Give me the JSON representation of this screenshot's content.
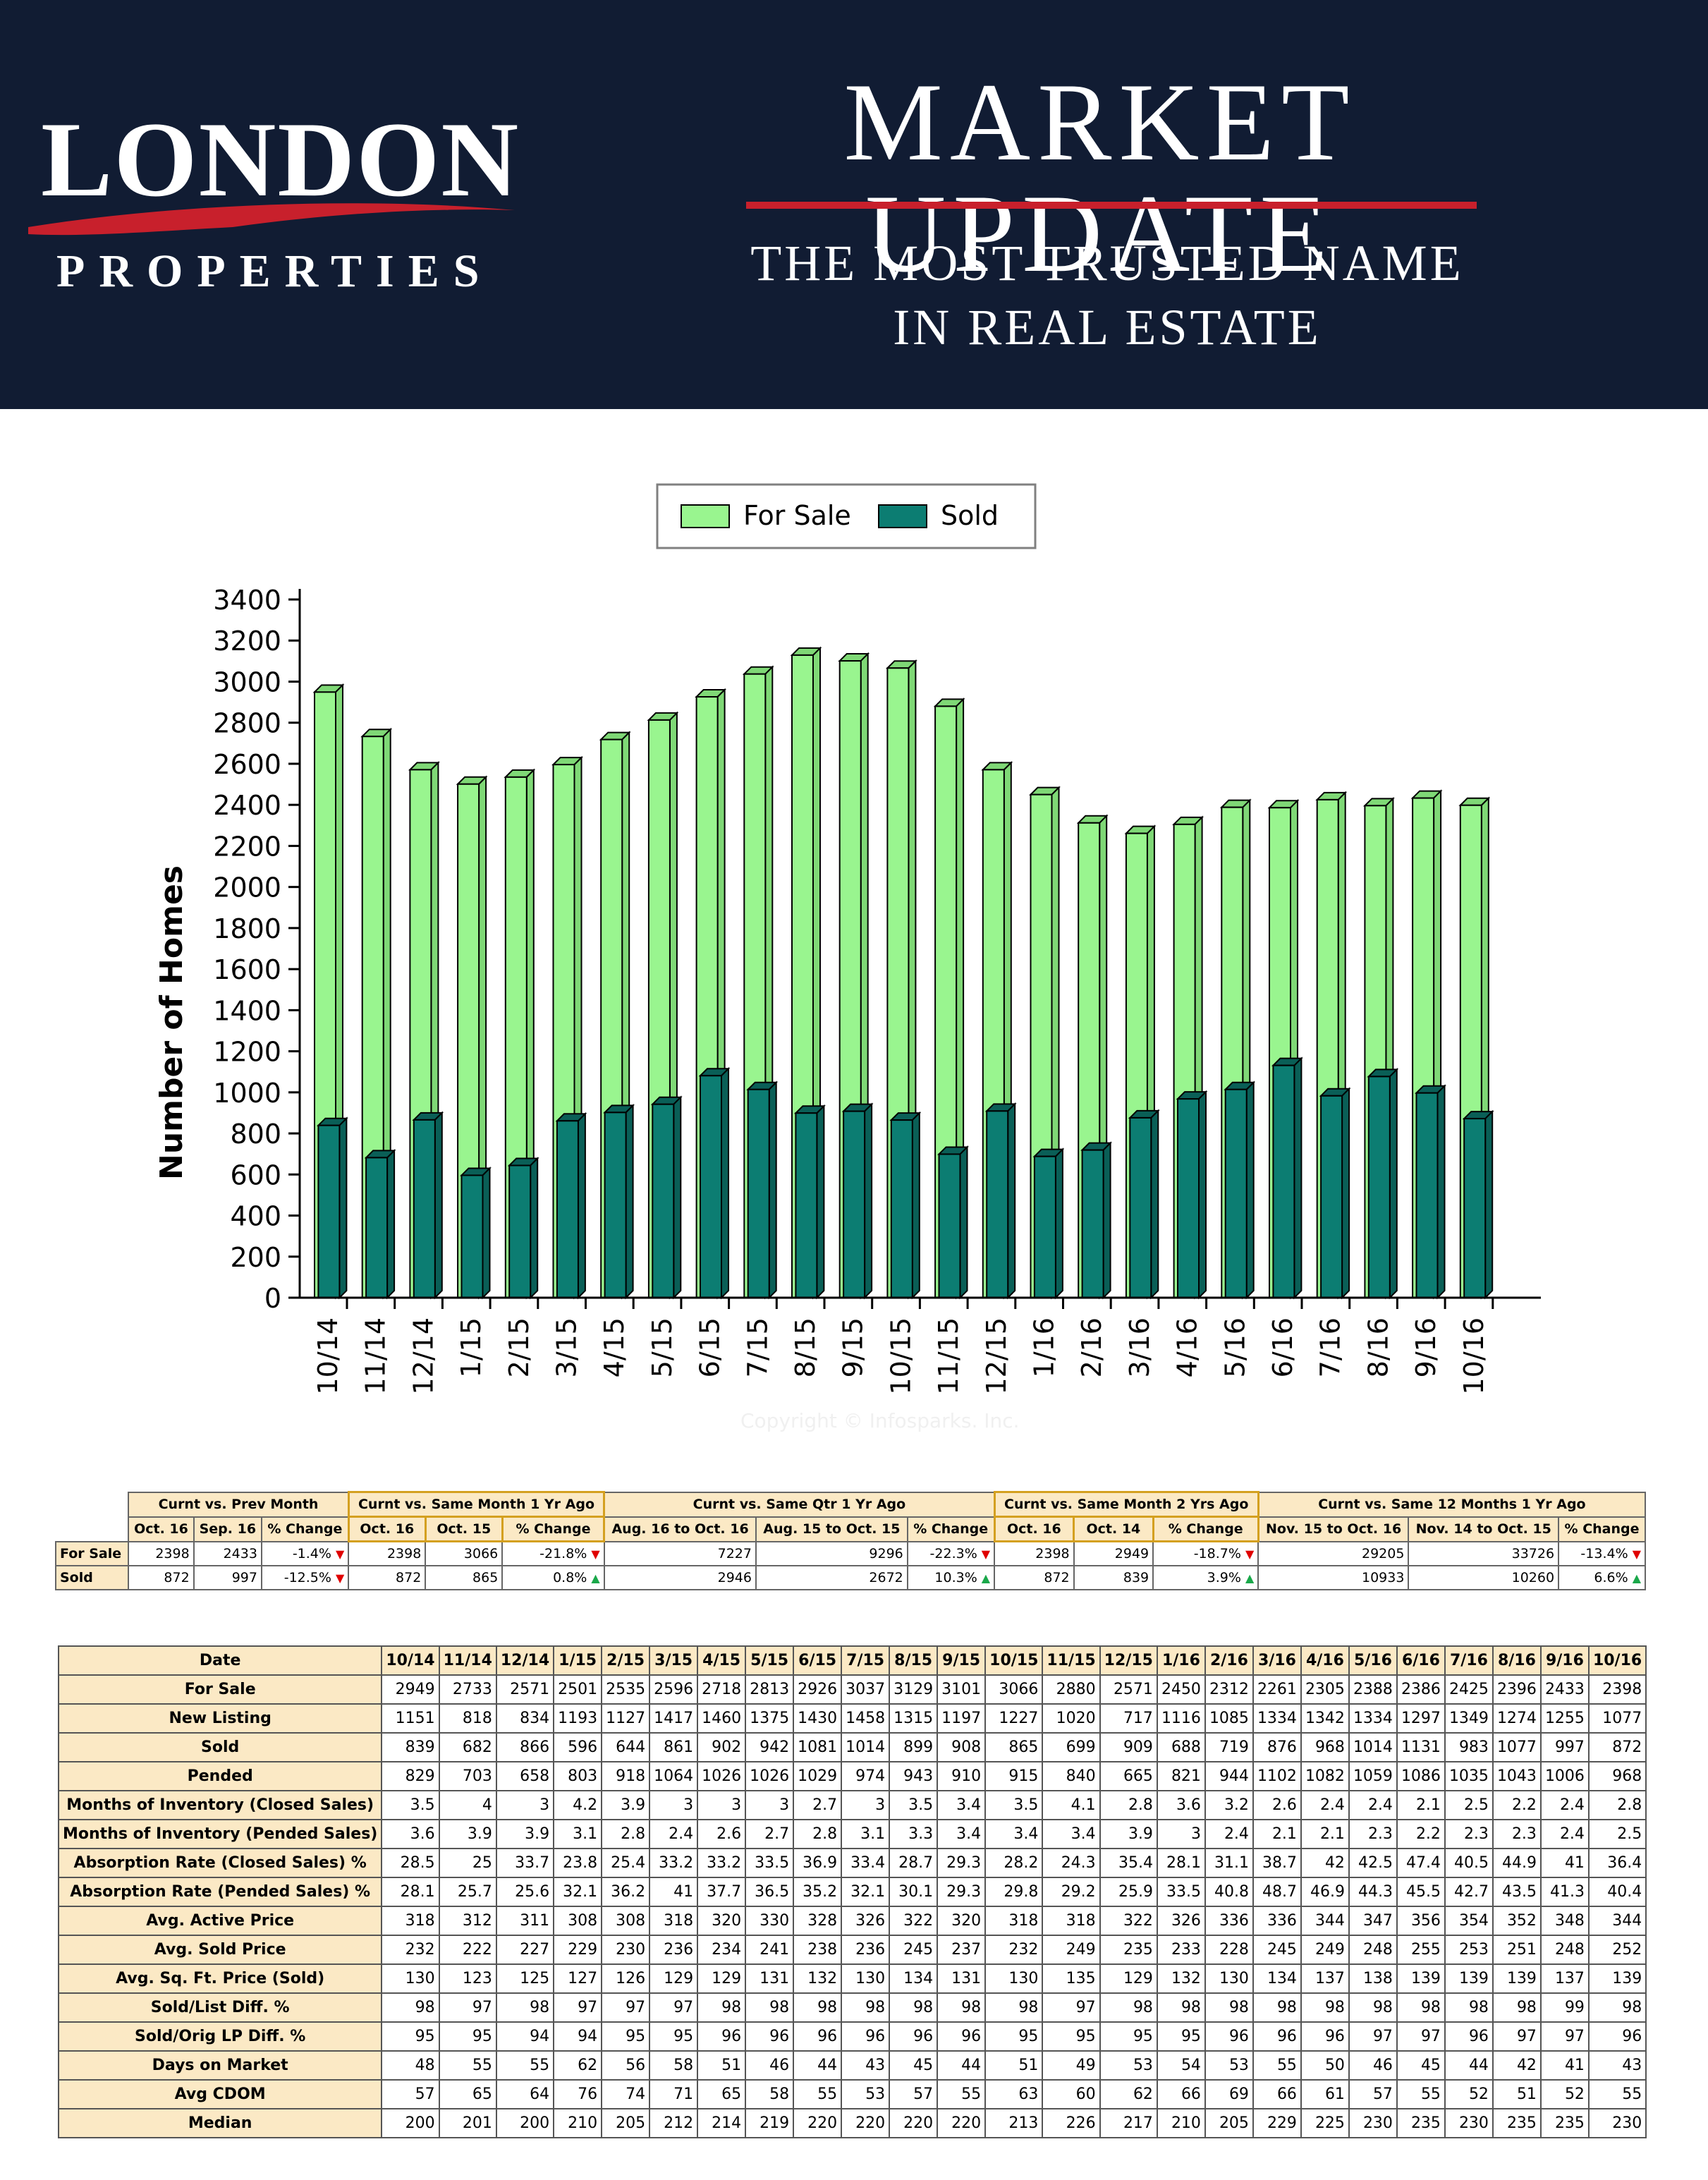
{
  "banner": {
    "logo_word": "LONDON",
    "logo_sub": "PROPERTIES",
    "title": "MARKET UPDATE",
    "tagline_line1": "THE MOST TRUSTED NAME",
    "tagline_line2": "IN REAL ESTATE",
    "colors": {
      "background": "#111c33",
      "accent": "#c8202c",
      "text": "#ffffff"
    }
  },
  "copyright": "Copyright © Infosparks. Inc.",
  "chart_data": {
    "type": "bar",
    "ylabel": "Number of Homes",
    "ylim": [
      0,
      3400
    ],
    "yticks": [
      0,
      200,
      400,
      600,
      800,
      1000,
      1200,
      1400,
      1600,
      1800,
      2000,
      2200,
      2400,
      2600,
      2800,
      3000,
      3200,
      3400
    ],
    "legend_position": "top-center",
    "grid": false,
    "categories": [
      "10/14",
      "11/14",
      "12/14",
      "1/15",
      "2/15",
      "3/15",
      "4/15",
      "5/15",
      "6/15",
      "7/15",
      "8/15",
      "9/15",
      "10/15",
      "11/15",
      "12/15",
      "1/16",
      "2/16",
      "3/16",
      "4/16",
      "5/16",
      "6/16",
      "7/16",
      "8/16",
      "9/16",
      "10/16"
    ],
    "series": [
      {
        "name": "For Sale",
        "color": "#99f58f",
        "values": [
          2949,
          2733,
          2571,
          2501,
          2535,
          2596,
          2718,
          2813,
          2926,
          3037,
          3129,
          3101,
          3066,
          2880,
          2571,
          2450,
          2312,
          2261,
          2305,
          2388,
          2386,
          2425,
          2396,
          2433,
          2398
        ]
      },
      {
        "name": "Sold",
        "color": "#0c7d72",
        "values": [
          839,
          682,
          866,
          596,
          644,
          861,
          902,
          942,
          1081,
          1014,
          899,
          908,
          865,
          699,
          909,
          688,
          719,
          876,
          968,
          1014,
          1131,
          983,
          1077,
          997,
          872
        ]
      }
    ]
  },
  "summary_table": {
    "groups": [
      "Curnt vs. Prev Month",
      "Curnt vs. Same Month 1 Yr Ago",
      "Curnt vs. Same Qtr 1 Yr Ago",
      "Curnt vs. Same Month 2 Yrs Ago",
      "Curnt vs. Same 12 Months 1 Yr Ago"
    ],
    "subheaders": [
      "Oct. 16",
      "Sep. 16",
      "% Change",
      "Oct. 16",
      "Oct. 15",
      "% Change",
      "Aug. 16 to Oct. 16",
      "Aug. 15 to Oct. 15",
      "% Change",
      "Oct. 16",
      "Oct. 14",
      "% Change",
      "Nov. 15 to Oct. 16",
      "Nov. 14 to Oct. 15",
      "% Change"
    ],
    "rows": [
      {
        "label": "For Sale",
        "cells": [
          "2398",
          "2433",
          "-1.4%",
          "2398",
          "3066",
          "-21.8%",
          "7227",
          "9296",
          "-22.3%",
          "2398",
          "2949",
          "-18.7%",
          "29205",
          "33726",
          "-13.4%"
        ],
        "trend": [
          "down",
          "down",
          "down",
          "down",
          "down"
        ]
      },
      {
        "label": "Sold",
        "cells": [
          "872",
          "997",
          "-12.5%",
          "872",
          "865",
          "0.8%",
          "2946",
          "2672",
          "10.3%",
          "872",
          "839",
          "3.9%",
          "10933",
          "10260",
          "6.6%"
        ],
        "trend": [
          "down",
          "up",
          "up",
          "up",
          "up"
        ]
      }
    ]
  },
  "stats_table": {
    "header": "Date",
    "columns": [
      "10/14",
      "11/14",
      "12/14",
      "1/15",
      "2/15",
      "3/15",
      "4/15",
      "5/15",
      "6/15",
      "7/15",
      "8/15",
      "9/15",
      "10/15",
      "11/15",
      "12/15",
      "1/16",
      "2/16",
      "3/16",
      "4/16",
      "5/16",
      "6/16",
      "7/16",
      "8/16",
      "9/16",
      "10/16"
    ],
    "rows": [
      {
        "label": "For Sale",
        "values": [
          "2949",
          "2733",
          "2571",
          "2501",
          "2535",
          "2596",
          "2718",
          "2813",
          "2926",
          "3037",
          "3129",
          "3101",
          "3066",
          "2880",
          "2571",
          "2450",
          "2312",
          "2261",
          "2305",
          "2388",
          "2386",
          "2425",
          "2396",
          "2433",
          "2398"
        ]
      },
      {
        "label": "New Listing",
        "values": [
          "1151",
          "818",
          "834",
          "1193",
          "1127",
          "1417",
          "1460",
          "1375",
          "1430",
          "1458",
          "1315",
          "1197",
          "1227",
          "1020",
          "717",
          "1116",
          "1085",
          "1334",
          "1342",
          "1334",
          "1297",
          "1349",
          "1274",
          "1255",
          "1077"
        ]
      },
      {
        "label": "Sold",
        "values": [
          "839",
          "682",
          "866",
          "596",
          "644",
          "861",
          "902",
          "942",
          "1081",
          "1014",
          "899",
          "908",
          "865",
          "699",
          "909",
          "688",
          "719",
          "876",
          "968",
          "1014",
          "1131",
          "983",
          "1077",
          "997",
          "872"
        ]
      },
      {
        "label": "Pended",
        "values": [
          "829",
          "703",
          "658",
          "803",
          "918",
          "1064",
          "1026",
          "1026",
          "1029",
          "974",
          "943",
          "910",
          "915",
          "840",
          "665",
          "821",
          "944",
          "1102",
          "1082",
          "1059",
          "1086",
          "1035",
          "1043",
          "1006",
          "968"
        ]
      },
      {
        "label": "Months of Inventory (Closed Sales)",
        "values": [
          "3.5",
          "4",
          "3",
          "4.2",
          "3.9",
          "3",
          "3",
          "3",
          "2.7",
          "3",
          "3.5",
          "3.4",
          "3.5",
          "4.1",
          "2.8",
          "3.6",
          "3.2",
          "2.6",
          "2.4",
          "2.4",
          "2.1",
          "2.5",
          "2.2",
          "2.4",
          "2.8"
        ]
      },
      {
        "label": "Months of Inventory (Pended Sales)",
        "values": [
          "3.6",
          "3.9",
          "3.9",
          "3.1",
          "2.8",
          "2.4",
          "2.6",
          "2.7",
          "2.8",
          "3.1",
          "3.3",
          "3.4",
          "3.4",
          "3.4",
          "3.9",
          "3",
          "2.4",
          "2.1",
          "2.1",
          "2.3",
          "2.2",
          "2.3",
          "2.3",
          "2.4",
          "2.5"
        ]
      },
      {
        "label": "Absorption Rate (Closed Sales) %",
        "values": [
          "28.5",
          "25",
          "33.7",
          "23.8",
          "25.4",
          "33.2",
          "33.2",
          "33.5",
          "36.9",
          "33.4",
          "28.7",
          "29.3",
          "28.2",
          "24.3",
          "35.4",
          "28.1",
          "31.1",
          "38.7",
          "42",
          "42.5",
          "47.4",
          "40.5",
          "44.9",
          "41",
          "36.4"
        ]
      },
      {
        "label": "Absorption Rate (Pended Sales) %",
        "values": [
          "28.1",
          "25.7",
          "25.6",
          "32.1",
          "36.2",
          "41",
          "37.7",
          "36.5",
          "35.2",
          "32.1",
          "30.1",
          "29.3",
          "29.8",
          "29.2",
          "25.9",
          "33.5",
          "40.8",
          "48.7",
          "46.9",
          "44.3",
          "45.5",
          "42.7",
          "43.5",
          "41.3",
          "40.4"
        ]
      },
      {
        "label": "Avg. Active Price",
        "values": [
          "318",
          "312",
          "311",
          "308",
          "308",
          "318",
          "320",
          "330",
          "328",
          "326",
          "322",
          "320",
          "318",
          "318",
          "322",
          "326",
          "336",
          "336",
          "344",
          "347",
          "356",
          "354",
          "352",
          "348",
          "344"
        ]
      },
      {
        "label": "Avg. Sold Price",
        "values": [
          "232",
          "222",
          "227",
          "229",
          "230",
          "236",
          "234",
          "241",
          "238",
          "236",
          "245",
          "237",
          "232",
          "249",
          "235",
          "233",
          "228",
          "245",
          "249",
          "248",
          "255",
          "253",
          "251",
          "248",
          "252"
        ]
      },
      {
        "label": "Avg. Sq. Ft. Price (Sold)",
        "values": [
          "130",
          "123",
          "125",
          "127",
          "126",
          "129",
          "129",
          "131",
          "132",
          "130",
          "134",
          "131",
          "130",
          "135",
          "129",
          "132",
          "130",
          "134",
          "137",
          "138",
          "139",
          "139",
          "139",
          "137",
          "139"
        ]
      },
      {
        "label": "Sold/List Diff. %",
        "values": [
          "98",
          "97",
          "98",
          "97",
          "97",
          "97",
          "98",
          "98",
          "98",
          "98",
          "98",
          "98",
          "98",
          "97",
          "98",
          "98",
          "98",
          "98",
          "98",
          "98",
          "98",
          "98",
          "98",
          "99",
          "98"
        ]
      },
      {
        "label": "Sold/Orig LP Diff. %",
        "values": [
          "95",
          "95",
          "94",
          "94",
          "95",
          "95",
          "96",
          "96",
          "96",
          "96",
          "96",
          "96",
          "95",
          "95",
          "95",
          "95",
          "96",
          "96",
          "96",
          "97",
          "97",
          "96",
          "97",
          "97",
          "96"
        ]
      },
      {
        "label": "Days on Market",
        "values": [
          "48",
          "55",
          "55",
          "62",
          "56",
          "58",
          "51",
          "46",
          "44",
          "43",
          "45",
          "44",
          "51",
          "49",
          "53",
          "54",
          "53",
          "55",
          "50",
          "46",
          "45",
          "44",
          "42",
          "41",
          "43"
        ]
      },
      {
        "label": "Avg CDOM",
        "values": [
          "57",
          "65",
          "64",
          "76",
          "74",
          "71",
          "65",
          "58",
          "55",
          "53",
          "57",
          "55",
          "63",
          "60",
          "62",
          "66",
          "69",
          "66",
          "61",
          "57",
          "55",
          "52",
          "51",
          "52",
          "55"
        ]
      },
      {
        "label": "Median",
        "values": [
          "200",
          "201",
          "200",
          "210",
          "205",
          "212",
          "214",
          "219",
          "220",
          "220",
          "220",
          "220",
          "213",
          "226",
          "217",
          "210",
          "205",
          "229",
          "225",
          "230",
          "235",
          "230",
          "235",
          "235",
          "230"
        ]
      }
    ]
  }
}
